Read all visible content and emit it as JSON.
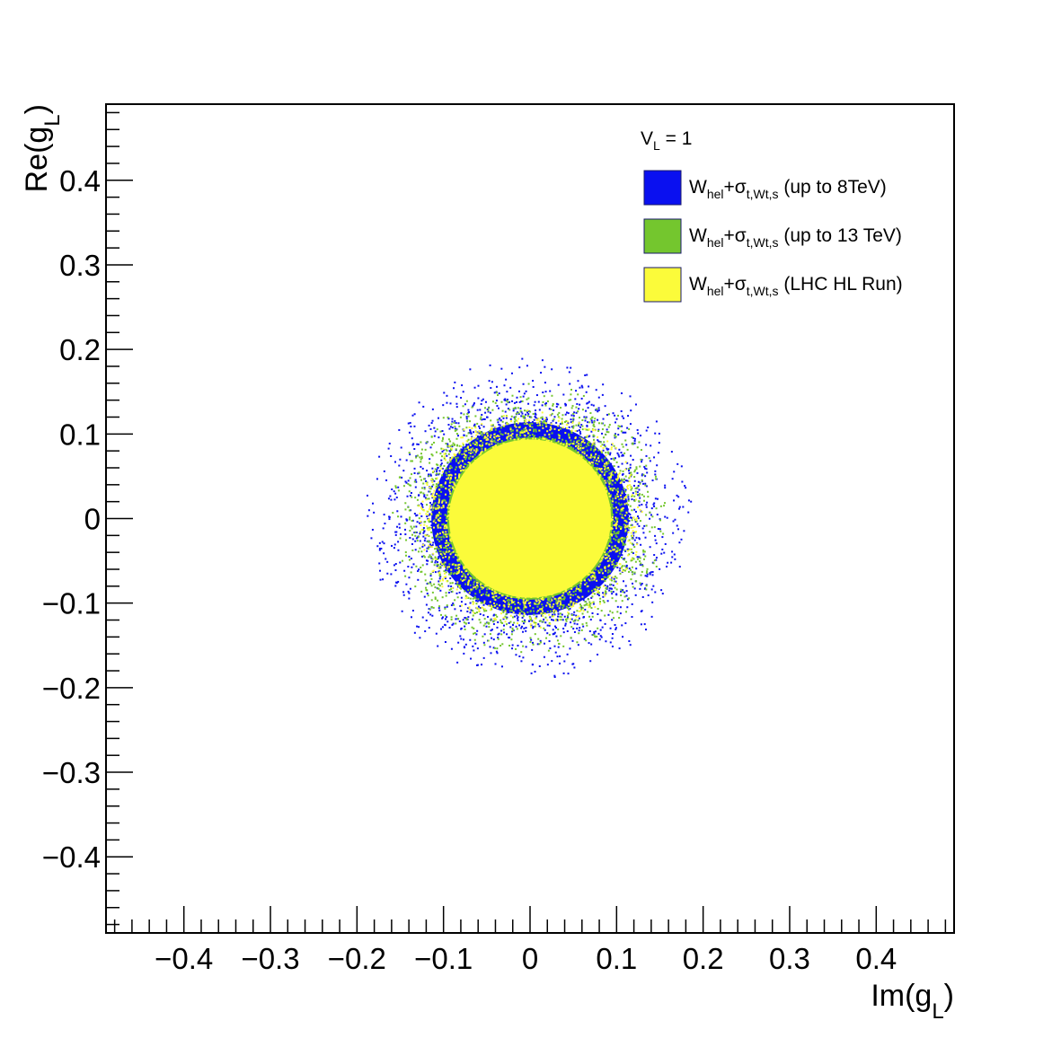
{
  "chart_data": {
    "type": "scatter",
    "xlabel": {
      "main": "Im(g",
      "sub": "L",
      "close": ")"
    },
    "ylabel": {
      "main": "Re(g",
      "sub": "L",
      "close": ")"
    },
    "xlim": [
      -0.49,
      0.49
    ],
    "ylim": [
      -0.49,
      0.49
    ],
    "x_ticks": [
      -0.4,
      -0.3,
      -0.2,
      -0.1,
      0,
      0.1,
      0.2,
      0.3,
      0.4
    ],
    "x_tick_labels": [
      "−0.4",
      "−0.3",
      "−0.2",
      "−0.1",
      "0",
      "0.1",
      "0.2",
      "0.3",
      "0.4"
    ],
    "y_ticks": [
      0.4,
      0.3,
      0.2,
      0.1,
      0,
      -0.1,
      -0.2,
      -0.3,
      -0.4
    ],
    "y_tick_labels": [
      "0.4",
      "0.3",
      "0.2",
      "0.1",
      "0",
      "−0.1",
      "−0.2",
      "−0.3",
      "−0.4"
    ],
    "grid": false,
    "legend_placement": "top-right",
    "legend_header": {
      "main": "V",
      "sub": "L",
      "rest": " = 1"
    },
    "series": [
      {
        "name": "W_hel+σ_t,Wt,s (up to 8TeV)",
        "label_parts": {
          "w": "W",
          "wsub": "hel",
          "plus": "+σ",
          "ssub": "t,Wt,s",
          "rest": " (up to 8TeV)"
        },
        "color": "#0a10f0",
        "center": [
          0.0,
          0.0
        ],
        "approx_radius": 0.19
      },
      {
        "name": "W_hel+σ_t,Wt,s (up to 13 TeV)",
        "label_parts": {
          "w": "W",
          "wsub": "hel",
          "plus": "+σ",
          "ssub": "t,Wt,s",
          "rest": " (up to 13 TeV)"
        },
        "color": "#74c62e",
        "center": [
          0.0,
          0.0
        ],
        "approx_radius": 0.16
      },
      {
        "name": "W_hel+σ_t,Wt,s (LHC HL Run)",
        "label_parts": {
          "w": "W",
          "wsub": "hel",
          "plus": "+σ",
          "ssub": "t,Wt,s",
          "rest": " (LHC HL Run)"
        },
        "color": "#fbfb3a",
        "center": [
          0.0,
          0.0
        ],
        "approx_radius": 0.13
      }
    ]
  }
}
